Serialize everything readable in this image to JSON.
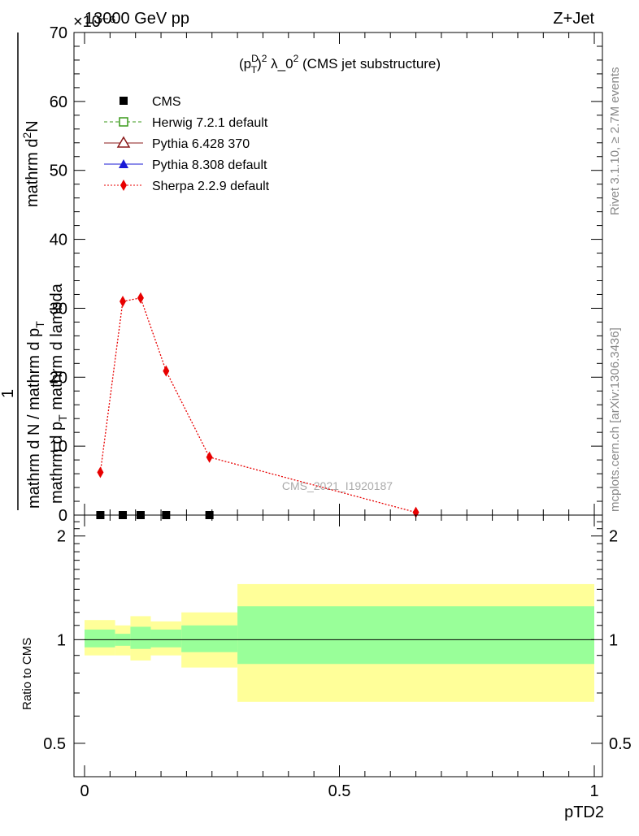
{
  "header": {
    "energy_label": "13000 GeV pp",
    "process_label": "Z+Jet",
    "exponent_label": "×10⁻⁶"
  },
  "side_labels": {
    "rivet": "Rivet 3.1.10, ≥ 2.7M events",
    "mcplots": "mcplots.cern.ch [arXiv:1306.3436]"
  },
  "watermark": "CMS_2021_I1920187",
  "colors": {
    "cms": "#000000",
    "herwig": "#3a9a1a",
    "pythia6": "#8b1a1a",
    "pythia8": "#1a1ad6",
    "sherpa": "#e80000",
    "band_outer": "#ffff99",
    "band_inner": "#99ff99"
  },
  "chart_data": [
    {
      "type": "line",
      "panel": "main",
      "title": "(p_T^D)^2 λ_0^2 (CMS jet substructure)",
      "title_parts": {
        "open": "(p",
        "sup_D": "D",
        "sub_T": "T",
        "close": ")",
        "sup_2a": "2",
        "mid": " λ_0",
        "sup_2b": "2",
        "tail": " (CMS jet substructure)"
      },
      "ylabel_parts": {
        "numerator": "1",
        "denominator": "mathrm d N / mathrm d p",
        "denom_sub": "T",
        "main": "mathrm d",
        "main2": "N",
        "main_sup": "2",
        "main_tail": "mathrm d p",
        "main_sub": "T",
        "main_tail2": " mathrm d lambda"
      },
      "ylabel_text": "1/(mathrm d N / mathrm d p_T) mathrm d^2N / mathrm d p_T mathrm d lambda",
      "xlabel": "",
      "xlim": [
        0,
        1
      ],
      "ylim": [
        0,
        70
      ],
      "y_ticks": [
        0,
        10,
        20,
        30,
        40,
        50,
        60,
        70
      ],
      "legend": {
        "placement": "top-left",
        "entries": [
          {
            "key": "cms",
            "label": "CMS"
          },
          {
            "key": "herwig",
            "label": "Herwig 7.2.1 default"
          },
          {
            "key": "pythia6",
            "label": "Pythia 6.428 370"
          },
          {
            "key": "pythia8",
            "label": "Pythia 8.308 default"
          },
          {
            "key": "sherpa",
            "label": "Sherpa 2.2.9 default"
          }
        ]
      },
      "series": [
        {
          "key": "cms",
          "name": "CMS",
          "marker": "square",
          "x": [
            0.031,
            0.075,
            0.11,
            0.16,
            0.245
          ],
          "values": [
            0.0,
            0.0,
            0.0,
            0.0,
            0.0
          ]
        },
        {
          "key": "sherpa",
          "name": "Sherpa 2.2.9 default",
          "marker": "diamond",
          "line": "dotted",
          "x": [
            0.031,
            0.075,
            0.11,
            0.16,
            0.245,
            0.65
          ],
          "values": [
            6.2,
            31.0,
            31.5,
            20.9,
            8.4,
            0.4
          ]
        }
      ]
    },
    {
      "type": "area",
      "panel": "ratio",
      "ylabel": "Ratio to CMS",
      "xlabel": "pTD2",
      "xlim": [
        0,
        1
      ],
      "ylim": [
        0.4,
        2.3
      ],
      "scale": "log",
      "y_ticks": [
        0.5,
        1,
        2
      ],
      "y_tick_labels": [
        "0.5",
        "1",
        "2"
      ],
      "x_ticks": [
        0,
        0.5,
        1
      ],
      "x_tick_labels": [
        "0",
        "0.5",
        "1"
      ],
      "bins": [
        {
          "x0": 0.0,
          "x1": 0.06,
          "outer_lo": 0.9,
          "outer_hi": 1.14,
          "inner_lo": 0.95,
          "inner_hi": 1.07
        },
        {
          "x0": 0.06,
          "x1": 0.09,
          "outer_lo": 0.9,
          "outer_hi": 1.1,
          "inner_lo": 0.96,
          "inner_hi": 1.04
        },
        {
          "x0": 0.09,
          "x1": 0.13,
          "outer_lo": 0.87,
          "outer_hi": 1.17,
          "inner_lo": 0.94,
          "inner_hi": 1.09
        },
        {
          "x0": 0.13,
          "x1": 0.19,
          "outer_lo": 0.9,
          "outer_hi": 1.13,
          "inner_lo": 0.95,
          "inner_hi": 1.07
        },
        {
          "x0": 0.19,
          "x1": 0.3,
          "outer_lo": 0.83,
          "outer_hi": 1.2,
          "inner_lo": 0.92,
          "inner_hi": 1.1
        },
        {
          "x0": 0.3,
          "x1": 1.0,
          "outer_lo": 0.66,
          "outer_hi": 1.45,
          "inner_lo": 0.85,
          "inner_hi": 1.25
        }
      ],
      "reference_line": 1.0
    }
  ]
}
